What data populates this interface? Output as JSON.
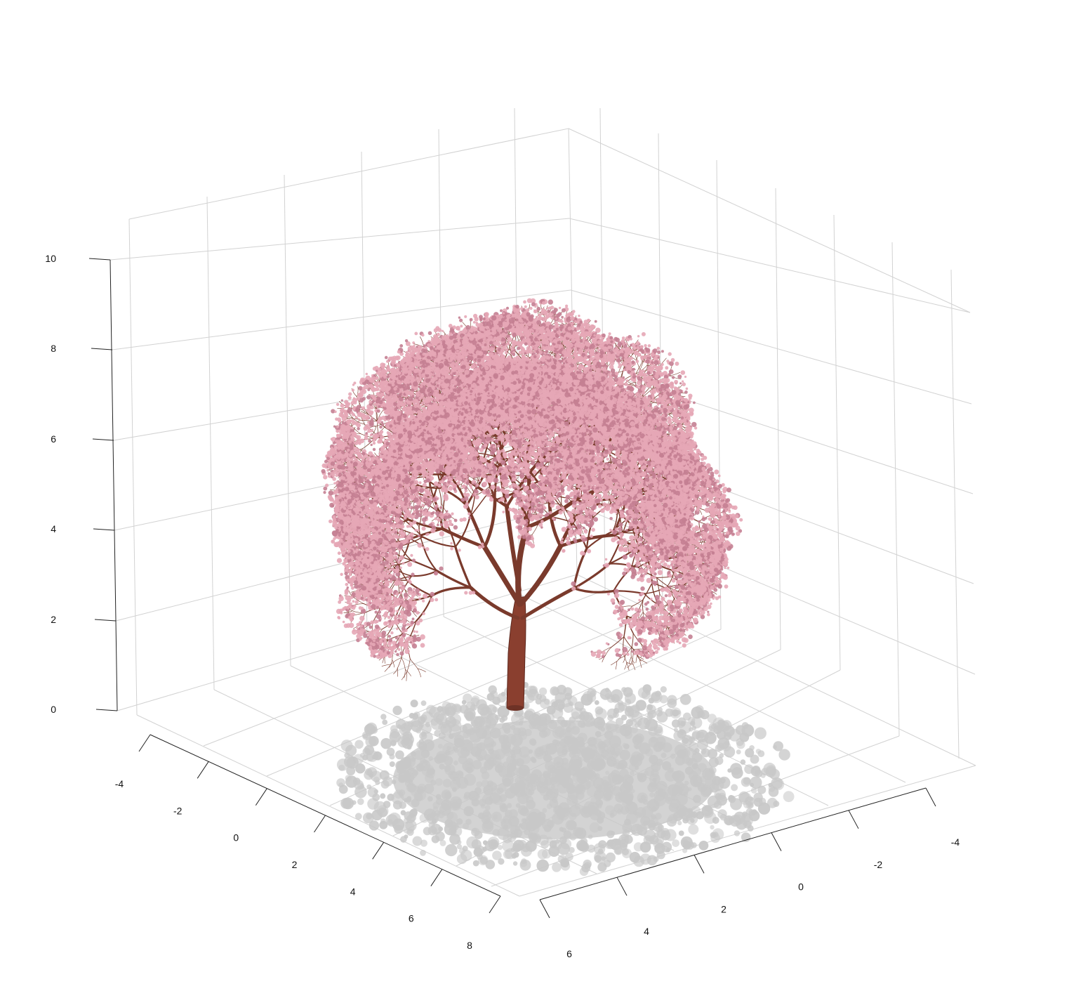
{
  "plot": {
    "type": "3d-scene",
    "z_axis": {
      "ticks": [
        "0",
        "2",
        "4",
        "6",
        "8",
        "10"
      ],
      "range": [
        0,
        10
      ]
    },
    "x_axis": {
      "ticks": [
        "-4",
        "-2",
        "0",
        "2",
        "4",
        "6",
        "8"
      ],
      "range": [
        -4,
        8
      ]
    },
    "y_axis": {
      "ticks": [
        "-4",
        "-2",
        "0",
        "2",
        "4",
        "6"
      ],
      "range": [
        -4,
        6
      ]
    },
    "grid": true
  },
  "colors": {
    "background": "#ffffff",
    "grid": "#d2d2d2",
    "axis": "#222222",
    "trunk": "#8a3f2f",
    "branch": "#7a3a2c",
    "blossom": "#e6a7b6",
    "blossom_dark": "#c47f92",
    "shadow": "#c8c8c8"
  },
  "objects": {
    "tree": "tree-icon",
    "shadow": "tree-shadow"
  }
}
